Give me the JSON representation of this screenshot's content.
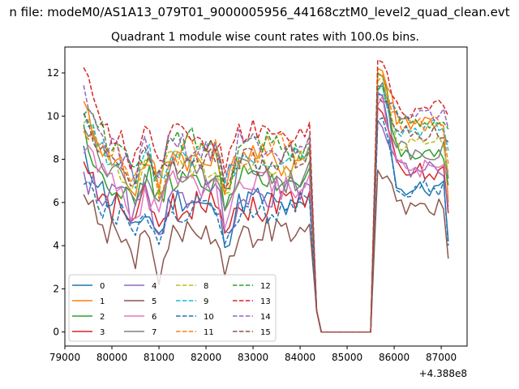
{
  "chart_data": {
    "type": "line",
    "suptitle": "n file: modeM0/AS1A13_079T01_9000005956_44168cztM0_level2_quad_clean.evt",
    "title": "Quadrant 1 module wise count rates with 100.0s bins.",
    "xlabel": "",
    "ylabel": "",
    "x_offset_label": "+4.388e8",
    "xlim": [
      79000,
      87550
    ],
    "ylim": [
      -0.65,
      13.2
    ],
    "x_ticks": [
      79000,
      80000,
      81000,
      82000,
      83000,
      84000,
      85000,
      86000,
      87000
    ],
    "y_ticks": [
      0,
      2,
      4,
      6,
      8,
      10,
      12
    ],
    "grid": false,
    "legend": {
      "placement": "lower-left",
      "columns": 4
    },
    "series": [
      {
        "name": "0",
        "color": "#1f77b4",
        "dash": "solid",
        "base": 5.9,
        "post": 6.6,
        "start": 8.1,
        "peak": 11.0,
        "end": 4.2
      },
      {
        "name": "1",
        "color": "#ff7f0e",
        "dash": "solid",
        "base": 8.1,
        "post": 9.8,
        "start": 10.0,
        "peak": 12.2,
        "end": 6.0
      },
      {
        "name": "2",
        "color": "#2ca02c",
        "dash": "solid",
        "base": 7.1,
        "post": 8.0,
        "start": 9.0,
        "peak": 12.0,
        "end": 6.8
      },
      {
        "name": "3",
        "color": "#d62728",
        "dash": "solid",
        "base": 6.0,
        "post": 7.4,
        "start": 7.6,
        "peak": 10.4,
        "end": 5.5
      },
      {
        "name": "4",
        "color": "#9467bd",
        "dash": "solid",
        "base": 6.3,
        "post": 7.6,
        "start": 7.5,
        "peak": 9.8,
        "end": 5.8
      },
      {
        "name": "5",
        "color": "#8c564b",
        "dash": "solid",
        "base": 4.5,
        "post": 5.8,
        "start": 6.6,
        "peak": 7.5,
        "end": 3.4
      },
      {
        "name": "6",
        "color": "#e377c2",
        "dash": "solid",
        "base": 6.8,
        "post": 7.6,
        "start": 8.4,
        "peak": 10.5,
        "end": 7.2
      },
      {
        "name": "7",
        "color": "#7f7f7f",
        "dash": "solid",
        "base": 7.4,
        "post": 8.4,
        "start": 9.4,
        "peak": 11.2,
        "end": 7.1
      },
      {
        "name": "8",
        "color": "#bcbd22",
        "dash": "dashed",
        "base": 7.9,
        "post": 8.8,
        "start": 9.6,
        "peak": 11.6,
        "end": 7.4
      },
      {
        "name": "9",
        "color": "#17becf",
        "dash": "dashed",
        "base": 8.2,
        "post": 9.4,
        "start": 10.3,
        "peak": 11.2,
        "end": 8.4
      },
      {
        "name": "10",
        "color": "#1f77b4",
        "dash": "dashed",
        "base": 5.6,
        "post": 6.7,
        "start": 7.4,
        "peak": 9.8,
        "end": 4.0
      },
      {
        "name": "11",
        "color": "#ff7f0e",
        "dash": "dashed",
        "base": 8.3,
        "post": 9.6,
        "start": 10.1,
        "peak": 11.9,
        "end": 7.8
      },
      {
        "name": "12",
        "color": "#2ca02c",
        "dash": "dashed",
        "base": 8.6,
        "post": 9.8,
        "start": 10.8,
        "peak": 11.4,
        "end": 9.4
      },
      {
        "name": "13",
        "color": "#d62728",
        "dash": "dashed",
        "base": 9.2,
        "post": 10.3,
        "start": 11.5,
        "peak": 12.6,
        "end": 10.0
      },
      {
        "name": "14",
        "color": "#9467bd",
        "dash": "dashed",
        "base": 8.6,
        "post": 9.9,
        "start": 10.6,
        "peak": 11.1,
        "end": 9.4
      },
      {
        "name": "15",
        "color": "#8c564b",
        "dash": "dashed",
        "base": 8.0,
        "post": 9.2,
        "start": 9.5,
        "peak": 10.9,
        "end": 8.8
      }
    ]
  }
}
